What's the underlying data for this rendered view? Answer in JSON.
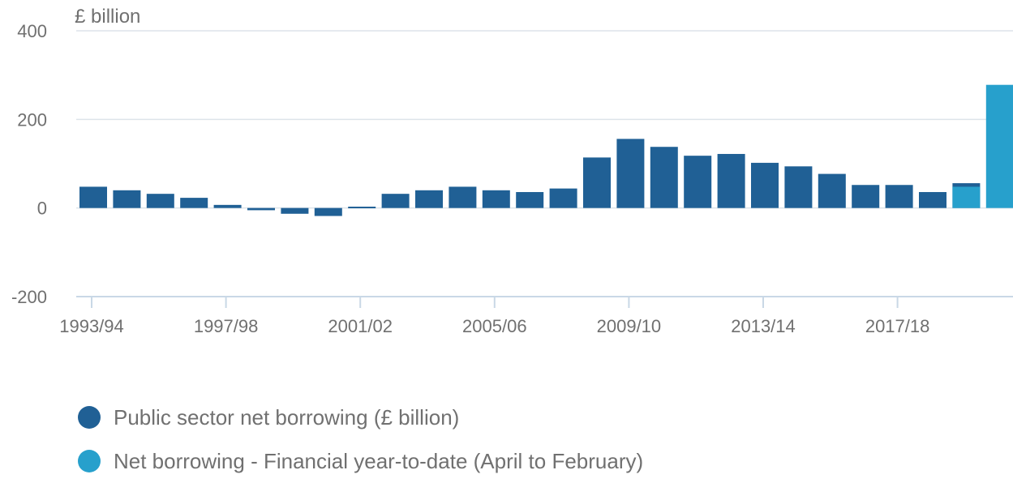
{
  "chart_data": {
    "type": "bar",
    "y_unit_label": "£ billion",
    "ylim": [
      -200,
      400
    ],
    "y_ticks": [
      -200,
      0,
      200,
      400
    ],
    "x_tick_labels": [
      "1993/94",
      "1997/98",
      "2001/02",
      "2005/06",
      "2009/10",
      "2013/14",
      "2017/18"
    ],
    "categories": [
      "1993/94",
      "1994/95",
      "1995/96",
      "1996/97",
      "1997/98",
      "1998/99",
      "1999/00",
      "2000/01",
      "2001/02",
      "2002/03",
      "2003/04",
      "2004/05",
      "2005/06",
      "2006/07",
      "2007/08",
      "2008/09",
      "2009/10",
      "2010/11",
      "2011/12",
      "2012/13",
      "2013/14",
      "2014/15",
      "2015/16",
      "2016/17",
      "2017/18",
      "2018/19",
      "2019/20",
      "2020/21"
    ],
    "grid": true,
    "legend_position": "bottom",
    "series": [
      {
        "name": "Public sector net borrowing (£ billion)",
        "color": "#206095",
        "values": [
          48,
          40,
          32,
          23,
          7,
          -5,
          -13,
          -18,
          3,
          32,
          40,
          48,
          40,
          36,
          44,
          114,
          156,
          138,
          118,
          122,
          102,
          94,
          77,
          52,
          52,
          36,
          56,
          null
        ]
      },
      {
        "name": "Net borrowing - Financial year-to-date (April to February)",
        "color": "#27a0cc",
        "values": [
          null,
          null,
          null,
          null,
          null,
          null,
          null,
          null,
          null,
          null,
          null,
          null,
          null,
          null,
          null,
          null,
          null,
          null,
          null,
          null,
          null,
          null,
          null,
          null,
          null,
          null,
          48,
          278
        ]
      }
    ]
  }
}
